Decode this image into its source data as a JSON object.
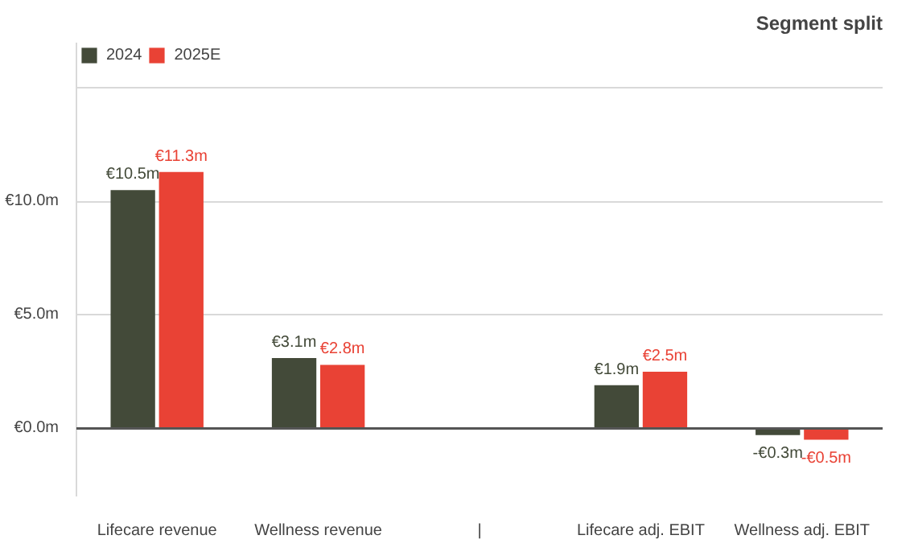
{
  "chart_data": {
    "type": "bar",
    "title": "Segment split",
    "categories": [
      "Lifecare revenue",
      "Wellness revenue",
      "|",
      "Lifecare adj. EBIT",
      "Wellness adj. EBIT"
    ],
    "series": [
      {
        "name": "2024",
        "color": "#434a39",
        "values": [
          10.5,
          3.1,
          null,
          1.9,
          -0.3
        ],
        "value_labels": [
          "€10.5m",
          "€3.1m",
          null,
          "€1.9m",
          "-€0.3m"
        ]
      },
      {
        "name": "2025E",
        "color": "#e94235",
        "values": [
          11.3,
          2.8,
          null,
          2.5,
          -0.5
        ],
        "value_labels": [
          "€11.3m",
          "€2.8m",
          null,
          "€2.5m",
          "-€0.5m"
        ]
      }
    ],
    "ylim": [
      -3,
      17
    ],
    "yticks": [
      {
        "value": 0,
        "label": "€0.0m"
      },
      {
        "value": 5,
        "label": "€5.0m"
      },
      {
        "value": 10,
        "label": "€10.0m"
      },
      {
        "value": 15,
        "label": null
      }
    ],
    "grid": "y",
    "legend": "top left"
  }
}
